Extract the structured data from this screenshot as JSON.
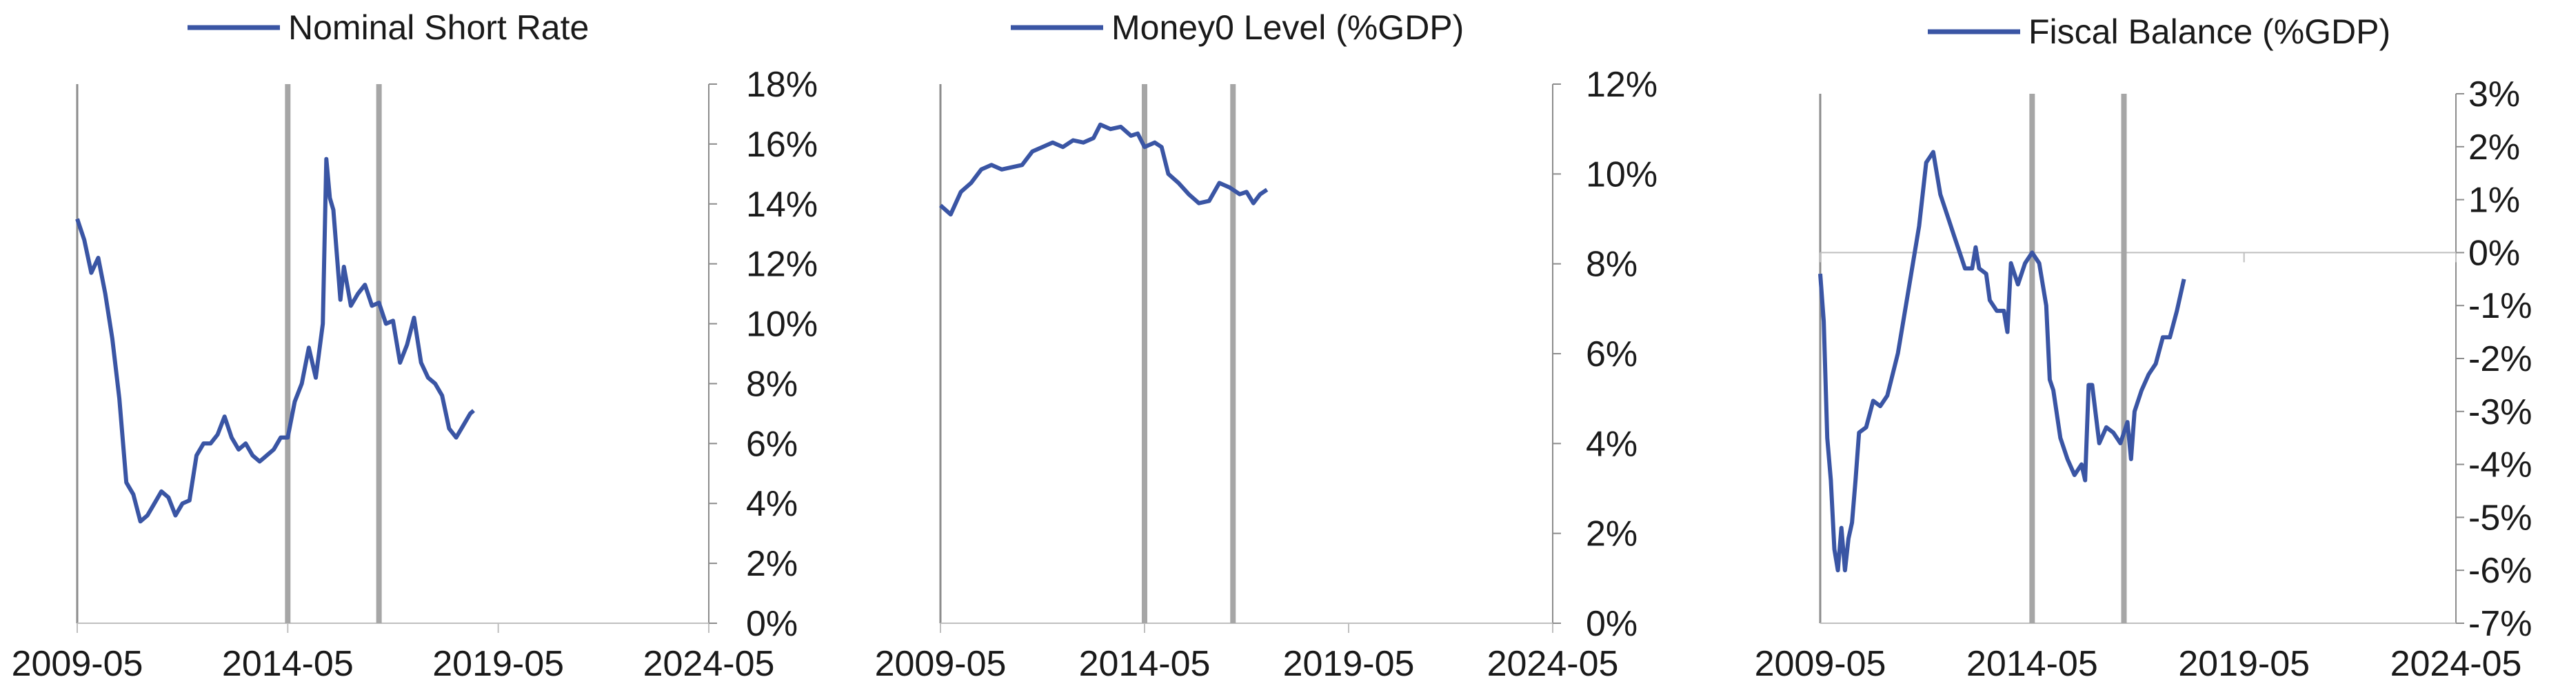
{
  "colors": {
    "series": "#3a55a4",
    "marker": "#a6a6a6",
    "axis": "#8c8c8c",
    "text": "#1a1a1a"
  },
  "chart_data": [
    {
      "type": "line",
      "legend_position": "top",
      "grid": false,
      "x_ticks": [
        "2009-05",
        "2014-05",
        "2019-05",
        "2024-05"
      ],
      "ylim": [
        0,
        18
      ],
      "y_ticks": [
        "0%",
        "2%",
        "4%",
        "6%",
        "8%",
        "10%",
        "12%",
        "14%",
        "16%",
        "18%"
      ],
      "vertical_markers": [
        "2014-05",
        "2016-07"
      ],
      "series": [
        {
          "name": "Nominal Short Rate",
          "points": [
            [
              "2009-05",
              13.5
            ],
            [
              "2009-07",
              12.8
            ],
            [
              "2009-09",
              11.7
            ],
            [
              "2009-11",
              12.2
            ],
            [
              "2010-01",
              11.0
            ],
            [
              "2010-03",
              9.5
            ],
            [
              "2010-05",
              7.5
            ],
            [
              "2010-07",
              4.7
            ],
            [
              "2010-09",
              4.3
            ],
            [
              "2010-11",
              3.4
            ],
            [
              "2011-01",
              3.6
            ],
            [
              "2011-03",
              4.0
            ],
            [
              "2011-05",
              4.4
            ],
            [
              "2011-07",
              4.2
            ],
            [
              "2011-09",
              3.6
            ],
            [
              "2011-11",
              4.0
            ],
            [
              "2012-01",
              4.1
            ],
            [
              "2012-03",
              5.6
            ],
            [
              "2012-05",
              6.0
            ],
            [
              "2012-07",
              6.0
            ],
            [
              "2012-09",
              6.3
            ],
            [
              "2012-11",
              6.9
            ],
            [
              "2013-01",
              6.2
            ],
            [
              "2013-03",
              5.8
            ],
            [
              "2013-05",
              6.0
            ],
            [
              "2013-07",
              5.6
            ],
            [
              "2013-09",
              5.4
            ],
            [
              "2013-11",
              5.6
            ],
            [
              "2014-01",
              5.8
            ],
            [
              "2014-03",
              6.2
            ],
            [
              "2014-05",
              6.2
            ],
            [
              "2014-07",
              7.4
            ],
            [
              "2014-09",
              8.0
            ],
            [
              "2014-11",
              9.2
            ],
            [
              "2015-01",
              8.2
            ],
            [
              "2015-03",
              10.0
            ],
            [
              "2015-04",
              15.5
            ],
            [
              "2015-05",
              14.2
            ],
            [
              "2015-06",
              13.8
            ],
            [
              "2015-08",
              10.8
            ],
            [
              "2015-09",
              11.9
            ],
            [
              "2015-11",
              10.6
            ],
            [
              "2016-01",
              11.0
            ],
            [
              "2016-03",
              11.3
            ],
            [
              "2016-05",
              10.6
            ],
            [
              "2016-07",
              10.7
            ],
            [
              "2016-09",
              10.0
            ],
            [
              "2016-11",
              10.1
            ],
            [
              "2017-01",
              8.7
            ],
            [
              "2017-03",
              9.3
            ],
            [
              "2017-05",
              10.2
            ],
            [
              "2017-07",
              8.7
            ],
            [
              "2017-09",
              8.2
            ],
            [
              "2017-11",
              8.0
            ],
            [
              "2018-01",
              7.6
            ],
            [
              "2018-03",
              6.5
            ],
            [
              "2018-05",
              6.2
            ],
            [
              "2018-07",
              6.6
            ],
            [
              "2018-09",
              7.0
            ],
            [
              "2018-10",
              7.1
            ]
          ]
        }
      ]
    },
    {
      "type": "line",
      "legend_position": "top",
      "grid": false,
      "x_ticks": [
        "2009-05",
        "2014-05",
        "2019-05",
        "2024-05"
      ],
      "ylim": [
        0,
        12
      ],
      "y_ticks": [
        "0%",
        "2%",
        "4%",
        "6%",
        "8%",
        "10%",
        "12%"
      ],
      "vertical_markers": [
        "2014-05",
        "2016-07"
      ],
      "series": [
        {
          "name": "Money0 Level (%GDP)",
          "points": [
            [
              "2009-05",
              9.3
            ],
            [
              "2009-08",
              9.1
            ],
            [
              "2009-11",
              9.6
            ],
            [
              "2010-02",
              9.8
            ],
            [
              "2010-05",
              10.1
            ],
            [
              "2010-08",
              10.2
            ],
            [
              "2010-11",
              10.1
            ],
            [
              "2011-02",
              10.15
            ],
            [
              "2011-05",
              10.2
            ],
            [
              "2011-08",
              10.5
            ],
            [
              "2011-11",
              10.6
            ],
            [
              "2012-02",
              10.7
            ],
            [
              "2012-05",
              10.6
            ],
            [
              "2012-08",
              10.75
            ],
            [
              "2012-11",
              10.7
            ],
            [
              "2013-02",
              10.8
            ],
            [
              "2013-04",
              11.1
            ],
            [
              "2013-07",
              11.0
            ],
            [
              "2013-10",
              11.05
            ],
            [
              "2014-01",
              10.85
            ],
            [
              "2014-03",
              10.9
            ],
            [
              "2014-05",
              10.6
            ],
            [
              "2014-08",
              10.7
            ],
            [
              "2014-10",
              10.6
            ],
            [
              "2014-12",
              10.0
            ],
            [
              "2015-03",
              9.8
            ],
            [
              "2015-06",
              9.55
            ],
            [
              "2015-09",
              9.35
            ],
            [
              "2015-12",
              9.4
            ],
            [
              "2016-03",
              9.8
            ],
            [
              "2016-06",
              9.7
            ],
            [
              "2016-09",
              9.55
            ],
            [
              "2016-11",
              9.6
            ],
            [
              "2017-01",
              9.35
            ],
            [
              "2017-03",
              9.55
            ],
            [
              "2017-05",
              9.65
            ]
          ]
        }
      ]
    },
    {
      "type": "line",
      "legend_position": "top",
      "grid": false,
      "x_ticks": [
        "2009-05",
        "2014-05",
        "2019-05",
        "2024-05"
      ],
      "ylim": [
        -7,
        3
      ],
      "y_ticks": [
        "-7%",
        "-6%",
        "-5%",
        "-4%",
        "-3%",
        "-2%",
        "-1%",
        "0%",
        "1%",
        "2%",
        "3%"
      ],
      "vertical_markers": [
        "2014-05",
        "2016-07"
      ],
      "series": [
        {
          "name": "Fiscal Balance (%GDP)",
          "points": [
            [
              "2009-05",
              -0.4
            ],
            [
              "2009-06",
              -1.3
            ],
            [
              "2009-07",
              -3.5
            ],
            [
              "2009-08",
              -4.3
            ],
            [
              "2009-09",
              -5.6
            ],
            [
              "2009-10",
              -6.0
            ],
            [
              "2009-11",
              -5.2
            ],
            [
              "2009-12",
              -6.0
            ],
            [
              "2010-01",
              -5.4
            ],
            [
              "2010-02",
              -5.1
            ],
            [
              "2010-03",
              -4.3
            ],
            [
              "2010-04",
              -3.4
            ],
            [
              "2010-06",
              -3.3
            ],
            [
              "2010-08",
              -2.8
            ],
            [
              "2010-10",
              -2.9
            ],
            [
              "2010-12",
              -2.7
            ],
            [
              "2011-03",
              -1.9
            ],
            [
              "2011-06",
              -0.7
            ],
            [
              "2011-09",
              0.5
            ],
            [
              "2011-11",
              1.7
            ],
            [
              "2012-01",
              1.9
            ],
            [
              "2012-03",
              1.1
            ],
            [
              "2012-05",
              0.7
            ],
            [
              "2012-07",
              0.3
            ],
            [
              "2012-09",
              -0.1
            ],
            [
              "2012-10",
              -0.3
            ],
            [
              "2012-12",
              -0.3
            ],
            [
              "2013-01",
              0.1
            ],
            [
              "2013-02",
              -0.3
            ],
            [
              "2013-04",
              -0.4
            ],
            [
              "2013-05",
              -0.9
            ],
            [
              "2013-07",
              -1.1
            ],
            [
              "2013-09",
              -1.1
            ],
            [
              "2013-10",
              -1.5
            ],
            [
              "2013-11",
              -0.2
            ],
            [
              "2014-01",
              -0.6
            ],
            [
              "2014-03",
              -0.2
            ],
            [
              "2014-05",
              0.0
            ],
            [
              "2014-07",
              -0.2
            ],
            [
              "2014-09",
              -1.0
            ],
            [
              "2014-10",
              -2.4
            ],
            [
              "2014-11",
              -2.6
            ],
            [
              "2015-01",
              -3.5
            ],
            [
              "2015-03",
              -3.9
            ],
            [
              "2015-05",
              -4.2
            ],
            [
              "2015-07",
              -4.0
            ],
            [
              "2015-08",
              -4.3
            ],
            [
              "2015-09",
              -2.5
            ],
            [
              "2015-10",
              -2.5
            ],
            [
              "2015-12",
              -3.6
            ],
            [
              "2016-02",
              -3.3
            ],
            [
              "2016-04",
              -3.4
            ],
            [
              "2016-06",
              -3.6
            ],
            [
              "2016-08",
              -3.2
            ],
            [
              "2016-09",
              -3.9
            ],
            [
              "2016-10",
              -3.0
            ],
            [
              "2016-12",
              -2.6
            ],
            [
              "2017-02",
              -2.3
            ],
            [
              "2017-04",
              -2.1
            ],
            [
              "2017-06",
              -1.6
            ],
            [
              "2017-08",
              -1.6
            ],
            [
              "2017-10",
              -1.1
            ],
            [
              "2017-12",
              -0.5
            ]
          ]
        }
      ]
    }
  ]
}
